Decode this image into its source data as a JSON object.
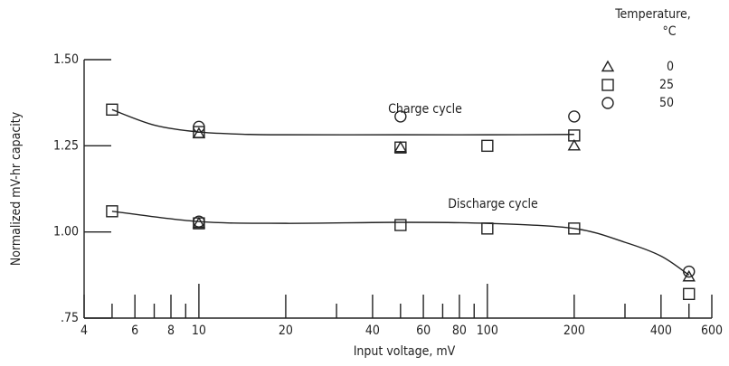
{
  "chart_data": {
    "type": "scatter",
    "x_label": "Input voltage, mV",
    "y_label": "Normalized mV-hr capacity",
    "xscale": "log",
    "xlim": [
      4,
      600
    ],
    "xticks": [
      4,
      6,
      8,
      10,
      20,
      40,
      60,
      80,
      100,
      200,
      400,
      600
    ],
    "xminor": [
      5,
      7,
      9,
      30,
      50,
      70,
      90,
      300,
      500
    ],
    "ylim": [
      0.75,
      1.5
    ],
    "yticks": [
      {
        "value": 0.75,
        "label": ".75"
      },
      {
        "value": 1.0,
        "label": "1.00"
      },
      {
        "value": 1.25,
        "label": "1.25"
      },
      {
        "value": 1.5,
        "label": "1.50"
      }
    ],
    "legend_title": "Temperature,",
    "legend_unit": "°C",
    "legend_position": "upper right",
    "color": "#222222",
    "series": [
      {
        "name": "0",
        "marker": "triangle",
        "x": [
          10,
          50,
          200,
          10,
          500
        ],
        "values": [
          1.285,
          1.245,
          1.25,
          1.025,
          0.87
        ]
      },
      {
        "name": "25",
        "marker": "square",
        "x": [
          5,
          10,
          50,
          100,
          200,
          5,
          10,
          50,
          100,
          200,
          500
        ],
        "values": [
          1.355,
          1.29,
          1.245,
          1.25,
          1.28,
          1.06,
          1.025,
          1.02,
          1.01,
          1.01,
          0.82
        ]
      },
      {
        "name": "50",
        "marker": "circle",
        "x": [
          10,
          50,
          200,
          10,
          500
        ],
        "values": [
          1.305,
          1.335,
          1.335,
          1.03,
          0.885
        ]
      }
    ],
    "curves": [
      {
        "label": "Charge cycle",
        "x": [
          5,
          7,
          10,
          15,
          20,
          50,
          100,
          200
        ],
        "values": [
          1.355,
          1.31,
          1.29,
          1.283,
          1.282,
          1.282,
          1.282,
          1.283
        ]
      },
      {
        "label": "Discharge cycle",
        "x": [
          5,
          10,
          20,
          50,
          100,
          200,
          300,
          400,
          500
        ],
        "values": [
          1.06,
          1.03,
          1.025,
          1.028,
          1.025,
          1.01,
          0.97,
          0.93,
          0.875
        ]
      }
    ]
  }
}
